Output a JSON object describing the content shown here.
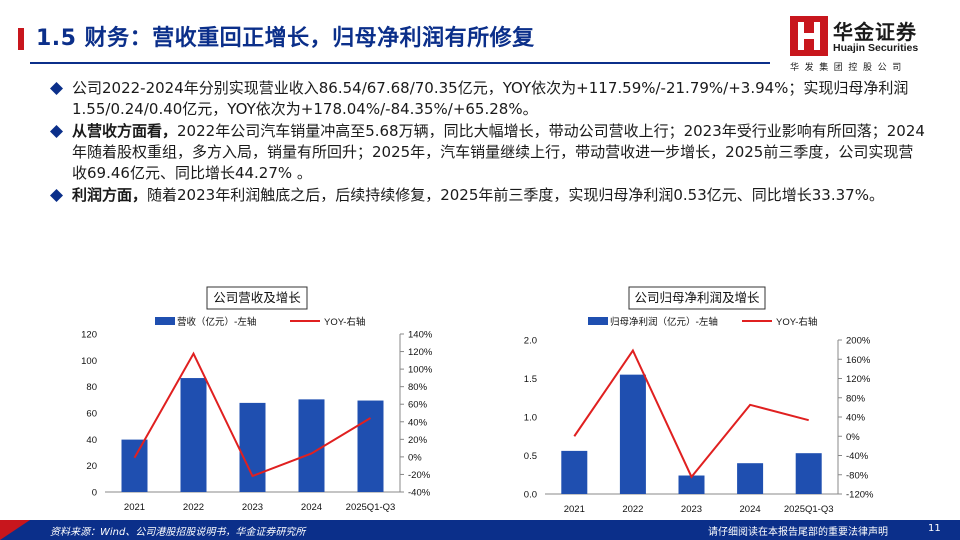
{
  "header": {
    "title": "1.5 财务：营收重回正增长，归母净利润有所修复"
  },
  "logo": {
    "name_cn": "华金证券",
    "name_en": "Huajin Securities",
    "sub": "华发集团控股公司"
  },
  "bullets": [
    {
      "lead": "",
      "text": "公司2022-2024年分别实现营业收入86.54/67.68/70.35亿元，YOY依次为+117.59%/-21.79%/+3.94%；实现归母净利润1.55/0.24/0.40亿元，YOY依次为+178.04%/-84.35%/+65.28%。"
    },
    {
      "lead": "从营收方面看，",
      "text": "2022年公司汽车销量冲高至5.68万辆，同比大幅增长，带动公司营收上行；2023年受行业影响有所回落；2024年随着股权重组，多方入局，销量有所回升；2025年，汽车销量继续上行，带动营收进一步增长，2025前三季度，公司实现营收69.46亿元、同比增长44.27% 。"
    },
    {
      "lead": "利润方面，",
      "text": "随着2023年利润触底之后，后续持续修复，2025年前三季度，实现归母净利润0.53亿元、同比增长33.37%。"
    }
  ],
  "chart_data": [
    {
      "type": "bar",
      "title": "公司营收及增长",
      "categories": [
        "2021",
        "2022",
        "2023",
        "2024",
        "2025Q1-Q3"
      ],
      "series": [
        {
          "name": "营收（亿元）-左轴",
          "type": "bar",
          "axis": "left",
          "values": [
            39.8,
            86.54,
            67.68,
            70.35,
            69.46
          ]
        },
        {
          "name": "YOY-右轴",
          "type": "line",
          "axis": "right",
          "values": [
            -1,
            117.59,
            -21.79,
            3.94,
            44.27
          ]
        }
      ],
      "left_axis": {
        "ylim": [
          0,
          120
        ],
        "ticks": [
          "0",
          "20",
          "40",
          "60",
          "80",
          "100",
          "120"
        ]
      },
      "right_axis": {
        "ylim": [
          -40,
          140
        ],
        "ticks": [
          "-40%",
          "-20%",
          "0%",
          "20%",
          "40%",
          "60%",
          "80%",
          "100%",
          "120%",
          "140%"
        ]
      },
      "legend": "top",
      "grid": false,
      "colors": {
        "bar": "#1f4fb0",
        "line": "#e02020"
      }
    },
    {
      "type": "bar",
      "title": "公司归母净利润及增长",
      "categories": [
        "2021",
        "2022",
        "2023",
        "2024",
        "2025Q1-Q3"
      ],
      "series": [
        {
          "name": "归母净利润（亿元）-左轴",
          "type": "bar",
          "axis": "left",
          "values": [
            0.56,
            1.55,
            0.24,
            0.4,
            0.53
          ]
        },
        {
          "name": "YOY-右轴",
          "type": "line",
          "axis": "right",
          "values": [
            0,
            178.04,
            -84.35,
            65.28,
            33.37
          ]
        }
      ],
      "left_axis": {
        "ylim": [
          0,
          2.0
        ],
        "ticks": [
          "0.0",
          "0.5",
          "1.0",
          "1.5",
          "2.0"
        ]
      },
      "right_axis": {
        "ylim": [
          -120,
          200
        ],
        "ticks": [
          "-120%",
          "-80%",
          "-40%",
          "0%",
          "40%",
          "80%",
          "120%",
          "160%",
          "200%"
        ]
      },
      "legend": "top",
      "grid": false,
      "colors": {
        "bar": "#1f4fb0",
        "line": "#e02020"
      }
    }
  ],
  "footer": {
    "source": "资料来源：Wind、公司港股招股说明书，华金证券研究所",
    "note": "请仔细阅读在本报告尾部的重要法律声明",
    "page": "11"
  },
  "colors": {
    "brand_blue": "#0b2f8a",
    "brand_red": "#c8161d"
  }
}
